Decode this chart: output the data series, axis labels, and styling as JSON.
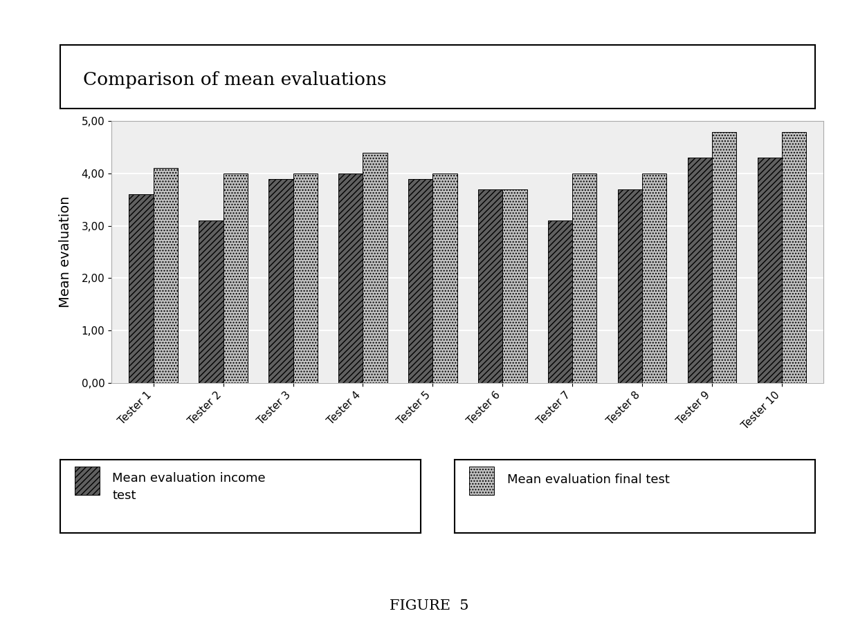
{
  "testers": [
    "Tester 1",
    "Tester 2",
    "Tester 3",
    "Tester 4",
    "Tester 5",
    "Tester 6",
    "Tester 7",
    "Tester 8",
    "Tester 9",
    "Tester 10"
  ],
  "income_values": [
    3.6,
    3.1,
    3.9,
    4.0,
    3.9,
    3.7,
    3.1,
    3.7,
    4.3,
    4.3
  ],
  "final_values": [
    4.1,
    4.0,
    4.0,
    4.4,
    4.0,
    3.7,
    4.0,
    4.0,
    4.8,
    4.8
  ],
  "income_color": "#606060",
  "final_color": "#c0c0c0",
  "income_hatch": "////",
  "final_hatch": "....",
  "ylabel": "Mean evaluation",
  "ylim": [
    0.0,
    5.0
  ],
  "ytick_positions": [
    0.0,
    1.0,
    2.0,
    3.0,
    4.0,
    5.0
  ],
  "ytick_labels": [
    "0,00",
    "1,00",
    "2,00",
    "3,00",
    "4,00",
    "5,00"
  ],
  "chart_title": "Comparison of mean evaluations",
  "legend_income_line1": "Mean evaluation income",
  "legend_income_line2": "test",
  "legend_final": "Mean evaluation final test",
  "figure_caption": "FIGURE  5",
  "bg_color": "#ffffff",
  "chart_bg": "#eeeeee",
  "bar_width": 0.35,
  "title_fontsize": 19,
  "axis_label_fontsize": 14,
  "tick_fontsize": 11,
  "legend_fontsize": 13,
  "caption_fontsize": 15
}
